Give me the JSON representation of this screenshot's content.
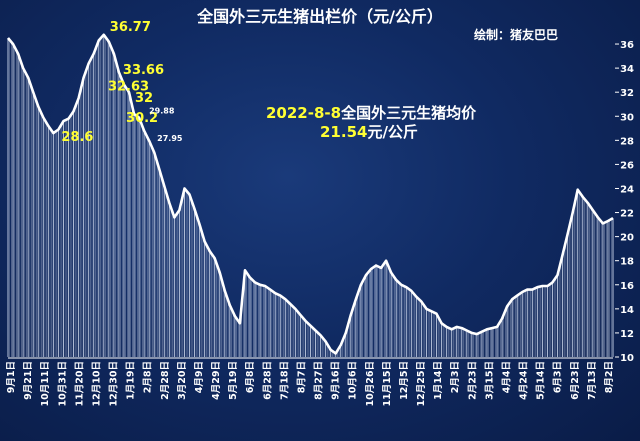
{
  "title": "全国外三元生猪出栏价（元/公斤）",
  "credit": "绘制：猪友巴巴",
  "annotation": {
    "date_label": "2022-8-8",
    "text": "全国外三元生猪均价",
    "price": "21.54",
    "unit": "元/公斤"
  },
  "colors": {
    "background": "#102a62",
    "line": "#ffffff",
    "bars": "#c8d2e8",
    "data_label_major": "#ffff33",
    "data_label_minor": "#ffffff",
    "axis_text": "#ffffff"
  },
  "chart_data": {
    "type": "area",
    "title": "全国外三元生猪出栏价（元/公斤）",
    "xlabel": "",
    "ylabel": "",
    "ylim": [
      10,
      37
    ],
    "yticks": [
      10,
      12,
      14,
      16,
      18,
      20,
      22,
      24,
      26,
      28,
      30,
      32,
      34,
      36
    ],
    "grid": false,
    "y_axis_side": "right",
    "x_tick_labels": [
      "9月1日",
      "9月21日",
      "10月11日",
      "10月31日",
      "11月20日",
      "12月10日",
      "12月30日",
      "1月19日",
      "2月8日",
      "2月28日",
      "3月20日",
      "4月9日",
      "4月29日",
      "5月19日",
      "6月8日",
      "6月28日",
      "7月18日",
      "8月7日",
      "8月27日",
      "9月16日",
      "10月6日",
      "10月26日",
      "11月15日",
      "12月5日",
      "12月25日",
      "1月14日",
      "2月3日",
      "2月23日",
      "3月15日",
      "4月4日",
      "4月24日",
      "5月14日",
      "6月3日",
      "6月23日",
      "7月13日",
      "8月2日"
    ],
    "series": [
      {
        "values": [
          36.5,
          36.0,
          35.2,
          34.0,
          33.2,
          32.0,
          30.8,
          29.9,
          29.2,
          28.6,
          28.9,
          29.6,
          29.8,
          30.4,
          31.5,
          33.2,
          34.4,
          35.2,
          36.3,
          36.77,
          36.2,
          35.2,
          33.66,
          32.63,
          32.0,
          30.2,
          29.88,
          28.8,
          27.95,
          27.0,
          25.6,
          24.2,
          22.8,
          21.6,
          22.2,
          24.0,
          23.5,
          22.3,
          21.0,
          19.6,
          18.8,
          18.2,
          17.0,
          15.5,
          14.3,
          13.4,
          12.8,
          17.2,
          16.6,
          16.2,
          16.0,
          15.9,
          15.6,
          15.3,
          15.1,
          14.8,
          14.4,
          14.0,
          13.5,
          13.0,
          12.6,
          12.2,
          11.8,
          11.3,
          10.6,
          10.3,
          11.0,
          12.0,
          13.5,
          14.8,
          16.0,
          16.8,
          17.3,
          17.6,
          17.4,
          18.0,
          17.0,
          16.4,
          16.0,
          15.8,
          15.5,
          15.0,
          14.6,
          14.0,
          13.8,
          13.6,
          12.8,
          12.5,
          12.3,
          12.5,
          12.4,
          12.2,
          12.0,
          11.9,
          12.1,
          12.3,
          12.4,
          12.5,
          13.2,
          14.2,
          14.8,
          15.1,
          15.4,
          15.6,
          15.6,
          15.8,
          15.9,
          15.9,
          16.2,
          16.8,
          18.5,
          20.2,
          22.0,
          23.9,
          23.3,
          22.8,
          22.2,
          21.6,
          21.1,
          21.3,
          21.54
        ]
      }
    ],
    "data_labels": [
      {
        "index": 9,
        "text": "28.6",
        "style": "major"
      },
      {
        "index": 19,
        "text": "36.77",
        "style": "major"
      },
      {
        "index": 22,
        "text": "33.66",
        "style": "major"
      },
      {
        "index": 23,
        "text": "32.63",
        "style": "major"
      },
      {
        "index": 24,
        "text": "32",
        "style": "major"
      },
      {
        "index": 25,
        "text": "30.2",
        "style": "major"
      },
      {
        "index": 26,
        "text": "29.88",
        "style": "minor"
      },
      {
        "index": 28,
        "text": "27.95",
        "style": "minor"
      }
    ]
  }
}
